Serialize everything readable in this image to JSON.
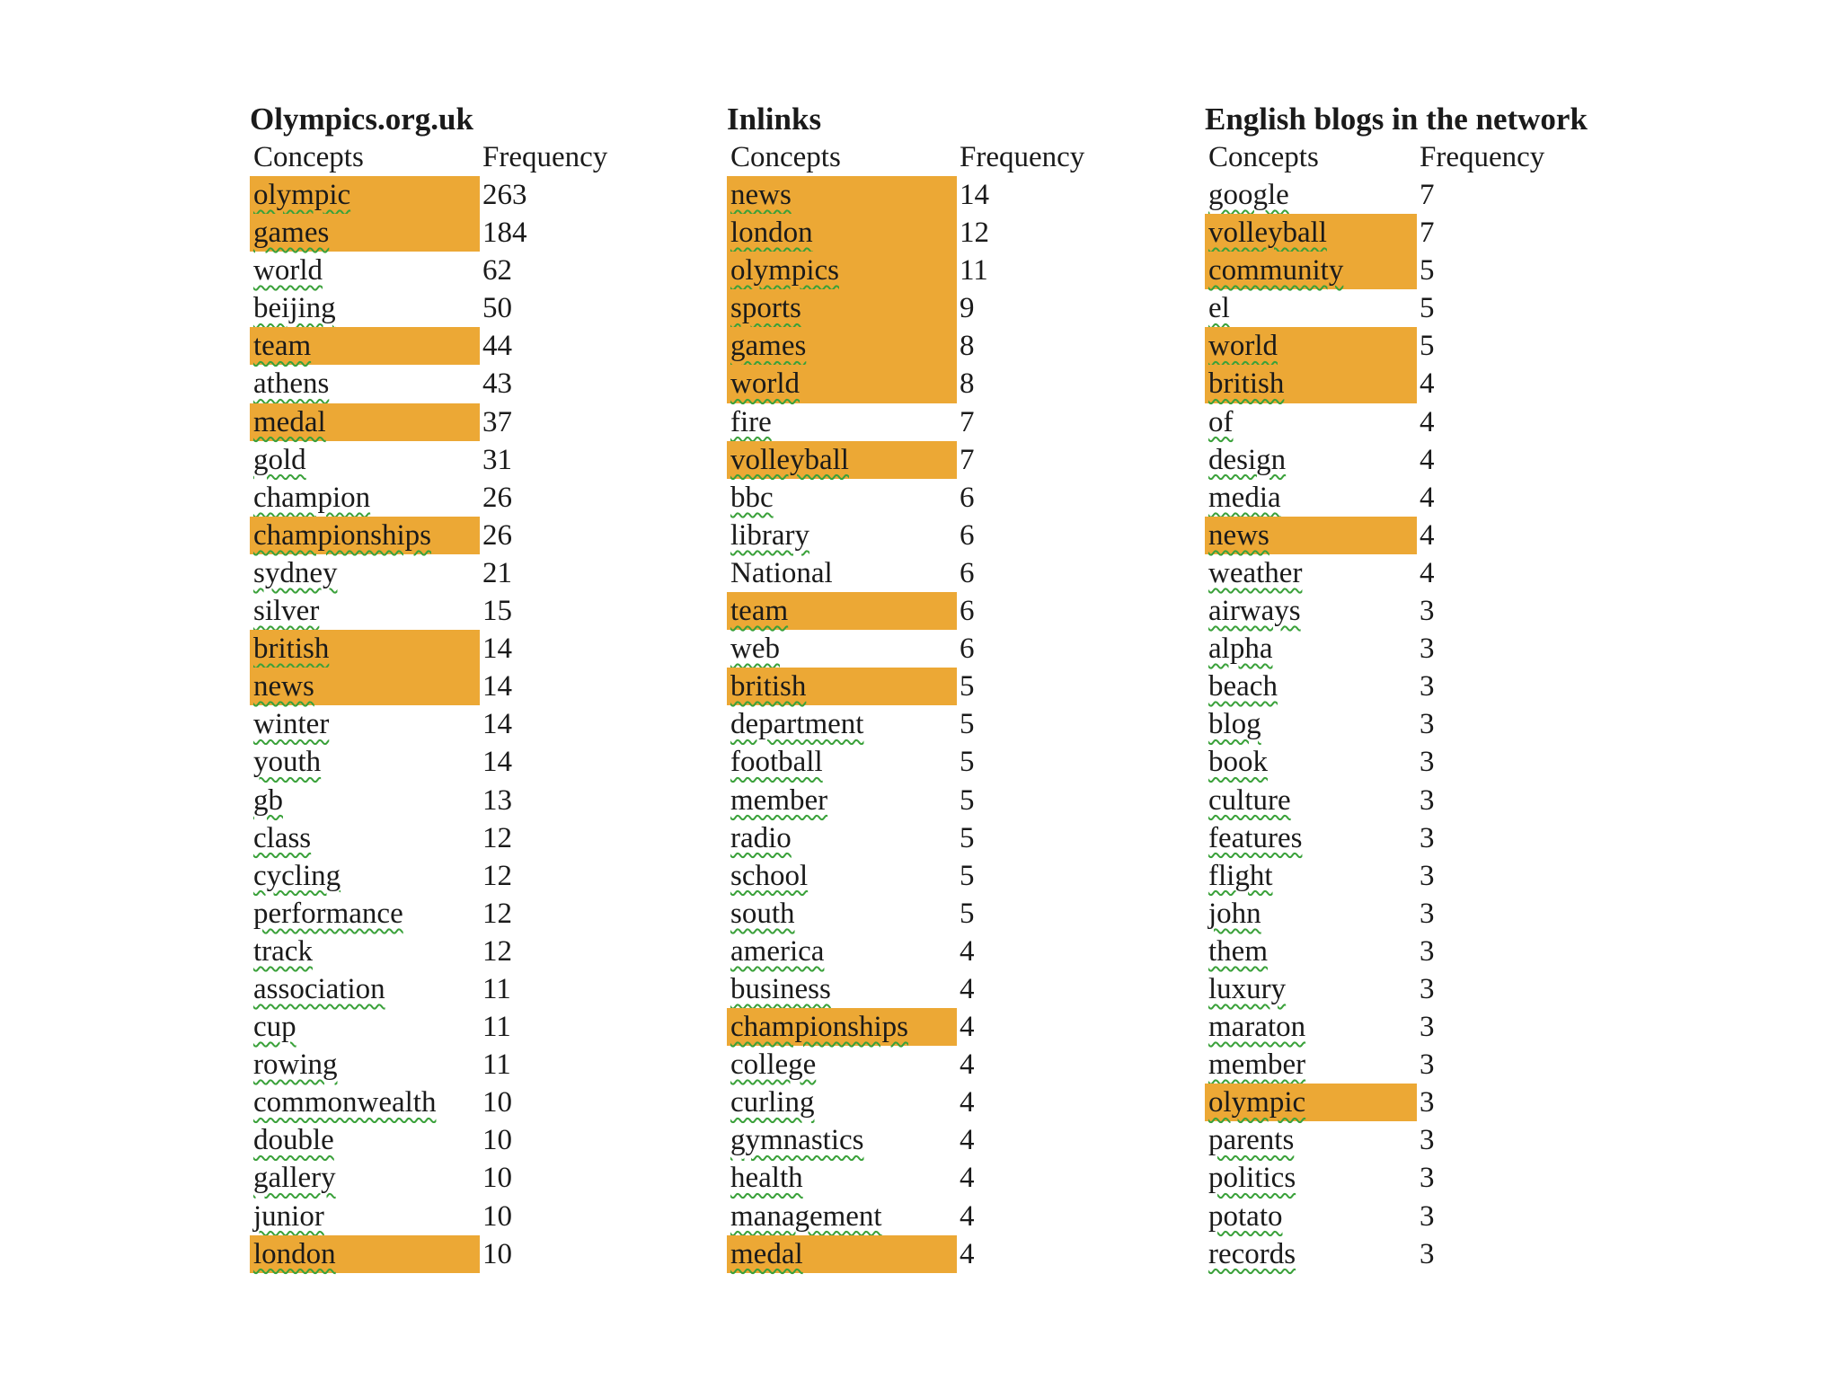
{
  "tables": [
    {
      "title": "Olympics.org.uk",
      "header_concept": "Concepts",
      "header_frequency": "Frequency",
      "rows": [
        {
          "concept": "olympic",
          "frequency": "263",
          "highlighted": true
        },
        {
          "concept": "games",
          "frequency": "184",
          "highlighted": true
        },
        {
          "concept": "world",
          "frequency": "62",
          "highlighted": false
        },
        {
          "concept": "beijing",
          "frequency": "50",
          "highlighted": false
        },
        {
          "concept": "team",
          "frequency": "44",
          "highlighted": true
        },
        {
          "concept": "athens",
          "frequency": "43",
          "highlighted": false
        },
        {
          "concept": "medal",
          "frequency": "37",
          "highlighted": true
        },
        {
          "concept": "gold",
          "frequency": "31",
          "highlighted": false
        },
        {
          "concept": "champion",
          "frequency": "26",
          "highlighted": false
        },
        {
          "concept": "championships",
          "frequency": "26",
          "highlighted": true
        },
        {
          "concept": "sydney",
          "frequency": "21",
          "highlighted": false
        },
        {
          "concept": "silver",
          "frequency": "15",
          "highlighted": false
        },
        {
          "concept": "british",
          "frequency": "14",
          "highlighted": true
        },
        {
          "concept": "news",
          "frequency": "14",
          "highlighted": true
        },
        {
          "concept": "winter",
          "frequency": "14",
          "highlighted": false
        },
        {
          "concept": "youth",
          "frequency": "14",
          "highlighted": false
        },
        {
          "concept": "gb",
          "frequency": "13",
          "highlighted": false
        },
        {
          "concept": "class",
          "frequency": "12",
          "highlighted": false
        },
        {
          "concept": "cycling",
          "frequency": "12",
          "highlighted": false
        },
        {
          "concept": "performance",
          "frequency": "12",
          "highlighted": false
        },
        {
          "concept": "track",
          "frequency": "12",
          "highlighted": false
        },
        {
          "concept": "association",
          "frequency": "11",
          "highlighted": false
        },
        {
          "concept": "cup",
          "frequency": "11",
          "highlighted": false
        },
        {
          "concept": "rowing",
          "frequency": "11",
          "highlighted": false
        },
        {
          "concept": "commonwealth",
          "frequency": "10",
          "highlighted": false
        },
        {
          "concept": "double",
          "frequency": "10",
          "highlighted": false
        },
        {
          "concept": "gallery",
          "frequency": "10",
          "highlighted": false
        },
        {
          "concept": "junior",
          "frequency": "10",
          "highlighted": false
        },
        {
          "concept": "london",
          "frequency": "10",
          "highlighted": true
        }
      ]
    },
    {
      "title": "Inlinks",
      "header_concept": "Concepts",
      "header_frequency": "Frequency",
      "rows": [
        {
          "concept": "news",
          "frequency": "14",
          "highlighted": true
        },
        {
          "concept": "london",
          "frequency": "12",
          "highlighted": true
        },
        {
          "concept": "olympics",
          "frequency": "11",
          "highlighted": true
        },
        {
          "concept": "sports",
          "frequency": "9",
          "highlighted": true
        },
        {
          "concept": "games",
          "frequency": "8",
          "highlighted": true
        },
        {
          "concept": "world",
          "frequency": "8",
          "highlighted": true
        },
        {
          "concept": "fire",
          "frequency": "7",
          "highlighted": false
        },
        {
          "concept": "volleyball",
          "frequency": "7",
          "highlighted": true
        },
        {
          "concept": "bbc",
          "frequency": "6",
          "highlighted": false
        },
        {
          "concept": "library",
          "frequency": "6",
          "highlighted": false
        },
        {
          "concept": "National",
          "frequency": "6",
          "highlighted": false
        },
        {
          "concept": "team",
          "frequency": "6",
          "highlighted": true
        },
        {
          "concept": "web",
          "frequency": "6",
          "highlighted": false
        },
        {
          "concept": "british",
          "frequency": "5",
          "highlighted": true
        },
        {
          "concept": "department",
          "frequency": "5",
          "highlighted": false
        },
        {
          "concept": "football",
          "frequency": "5",
          "highlighted": false
        },
        {
          "concept": "member",
          "frequency": "5",
          "highlighted": false
        },
        {
          "concept": "radio",
          "frequency": "5",
          "highlighted": false
        },
        {
          "concept": "school",
          "frequency": "5",
          "highlighted": false
        },
        {
          "concept": "south",
          "frequency": "5",
          "highlighted": false
        },
        {
          "concept": "america",
          "frequency": "4",
          "highlighted": false
        },
        {
          "concept": "business",
          "frequency": "4",
          "highlighted": false
        },
        {
          "concept": "championships",
          "frequency": "4",
          "highlighted": true
        },
        {
          "concept": "college",
          "frequency": "4",
          "highlighted": false
        },
        {
          "concept": "curling",
          "frequency": "4",
          "highlighted": false
        },
        {
          "concept": "gymnastics",
          "frequency": "4",
          "highlighted": false
        },
        {
          "concept": "health",
          "frequency": "4",
          "highlighted": false
        },
        {
          "concept": "management",
          "frequency": "4",
          "highlighted": false
        },
        {
          "concept": "medal",
          "frequency": "4",
          "highlighted": true
        }
      ]
    },
    {
      "title": "English blogs in the network",
      "header_concept": "Concepts",
      "header_frequency": "Frequency",
      "rows": [
        {
          "concept": "google",
          "frequency": "7",
          "highlighted": false
        },
        {
          "concept": "volleyball",
          "frequency": "7",
          "highlighted": true
        },
        {
          "concept": "community",
          "frequency": "5",
          "highlighted": true
        },
        {
          "concept": "el",
          "frequency": "5",
          "highlighted": false
        },
        {
          "concept": "world",
          "frequency": "5",
          "highlighted": true
        },
        {
          "concept": "british",
          "frequency": "4",
          "highlighted": true
        },
        {
          "concept": "of",
          "frequency": "4",
          "highlighted": false
        },
        {
          "concept": "design",
          "frequency": "4",
          "highlighted": false
        },
        {
          "concept": "media",
          "frequency": "4",
          "highlighted": false
        },
        {
          "concept": "news",
          "frequency": "4",
          "highlighted": true
        },
        {
          "concept": "weather",
          "frequency": "4",
          "highlighted": false
        },
        {
          "concept": "airways",
          "frequency": "3",
          "highlighted": false
        },
        {
          "concept": "alpha",
          "frequency": "3",
          "highlighted": false
        },
        {
          "concept": "beach",
          "frequency": "3",
          "highlighted": false
        },
        {
          "concept": "blog",
          "frequency": "3",
          "highlighted": false
        },
        {
          "concept": "book",
          "frequency": "3",
          "highlighted": false
        },
        {
          "concept": "culture",
          "frequency": "3",
          "highlighted": false
        },
        {
          "concept": "features",
          "frequency": "3",
          "highlighted": false
        },
        {
          "concept": "flight",
          "frequency": "3",
          "highlighted": false
        },
        {
          "concept": "john",
          "frequency": "3",
          "highlighted": false
        },
        {
          "concept": "them",
          "frequency": "3",
          "highlighted": false
        },
        {
          "concept": "luxury",
          "frequency": "3",
          "highlighted": false
        },
        {
          "concept": "maraton",
          "frequency": "3",
          "highlighted": false
        },
        {
          "concept": "member",
          "frequency": "3",
          "highlighted": false
        },
        {
          "concept": "olympic",
          "frequency": "3",
          "highlighted": true
        },
        {
          "concept": "parents",
          "frequency": "3",
          "highlighted": false
        },
        {
          "concept": "politics",
          "frequency": "3",
          "highlighted": false
        },
        {
          "concept": "potato",
          "frequency": "3",
          "highlighted": false
        },
        {
          "concept": "records",
          "frequency": "3",
          "highlighted": false
        }
      ]
    }
  ],
  "colors": {
    "highlight": "#eca835",
    "spellcheck_underline": "#3aa13a"
  }
}
